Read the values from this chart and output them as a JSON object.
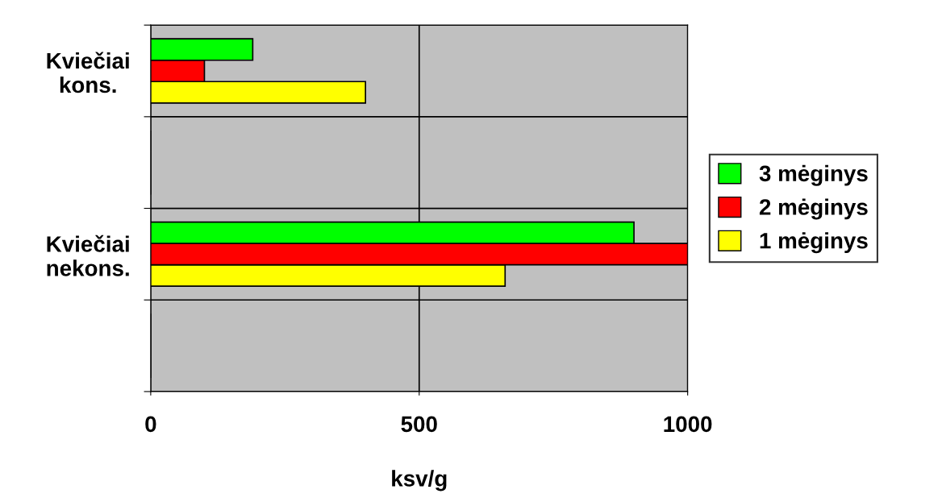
{
  "chart_data": {
    "type": "bar",
    "orientation": "horizontal",
    "xlabel": "ksv/g",
    "categories": [
      "Kviečiai\nkons.",
      null,
      "Kviečiai\nnekons.",
      null
    ],
    "series": [
      {
        "name": "1 mėginys",
        "color": "#ffff00",
        "values": [
          400,
          null,
          660,
          null
        ]
      },
      {
        "name": "2 mėginys",
        "color": "#ff0000",
        "values": [
          100,
          null,
          1000,
          null
        ]
      },
      {
        "name": "3 mėginys",
        "color": "#00ff00",
        "values": [
          190,
          null,
          900,
          null
        ]
      }
    ],
    "xlim": [
      0,
      1000
    ],
    "xticks": [
      0,
      500,
      1000
    ],
    "grid": true,
    "legend": "right"
  }
}
